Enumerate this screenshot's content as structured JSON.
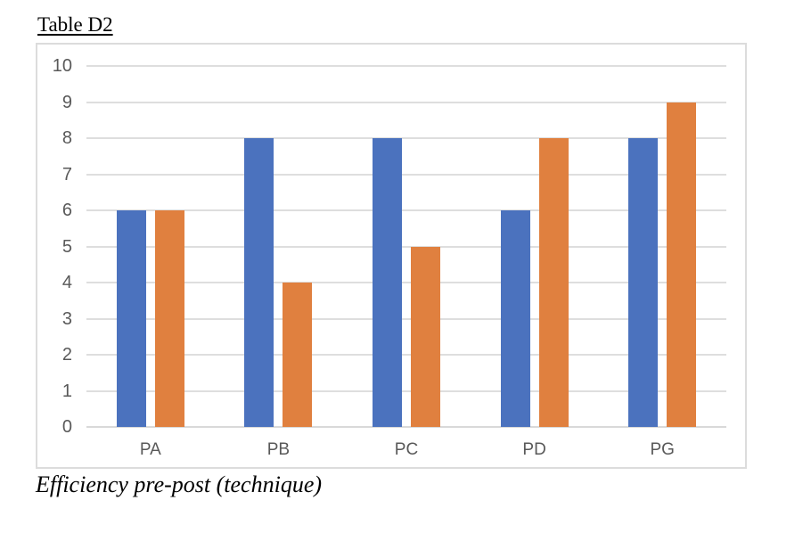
{
  "chart_data": {
    "type": "bar",
    "title": "Table D2",
    "caption": "Efficiency pre-post (technique)",
    "categories": [
      "PA",
      "PB",
      "PC",
      "PD",
      "PG"
    ],
    "series": [
      {
        "color": "#4B72BE",
        "values": [
          6,
          8,
          8,
          6,
          8
        ]
      },
      {
        "color": "#E0803F",
        "values": [
          6,
          4,
          5,
          8,
          9
        ]
      }
    ],
    "ylim": [
      0,
      10
    ],
    "yticks": [
      0,
      1,
      2,
      3,
      4,
      5,
      6,
      7,
      8,
      9,
      10
    ],
    "grid": true,
    "legend": "none",
    "colors": {
      "tick_label": "#595959",
      "gridline": "#dedede",
      "axis_line": "#d9d9d9",
      "frame_border": "#dcdcdc",
      "background": "#ffffff"
    }
  }
}
